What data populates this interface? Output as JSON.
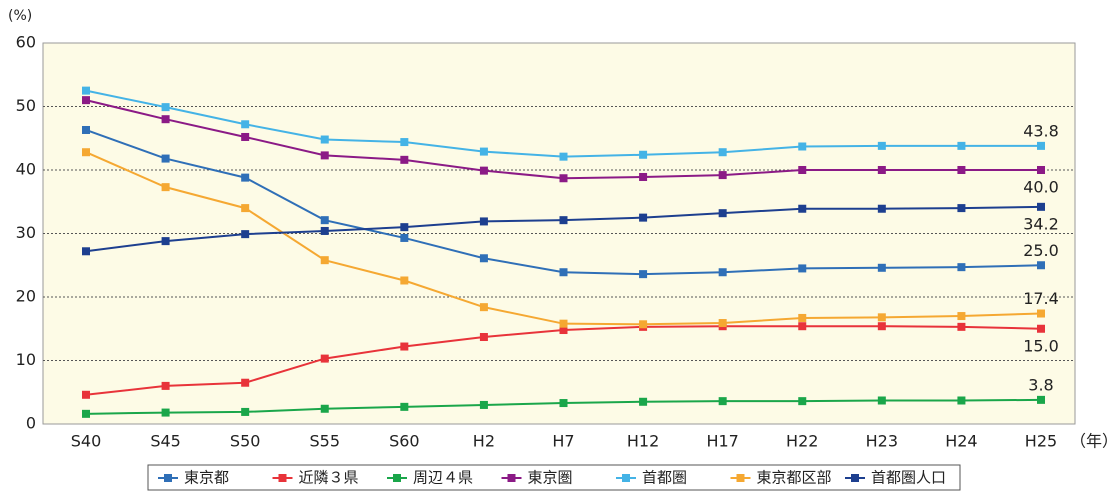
{
  "chart_data": {
    "type": "line",
    "y_label": "(%)",
    "x_label": "（年）",
    "categories": [
      "S40",
      "S45",
      "S50",
      "S55",
      "S60",
      "H2",
      "H7",
      "H12",
      "H17",
      "H22",
      "H23",
      "H24",
      "H25"
    ],
    "ylim": [
      0,
      60
    ],
    "yticks": [
      0,
      10,
      20,
      30,
      40,
      50,
      60
    ],
    "grid": true,
    "legend": "bottom",
    "series": [
      {
        "name": "東京都",
        "color": "#2f6fb7",
        "values": [
          46.3,
          41.8,
          38.8,
          32.1,
          29.3,
          26.1,
          23.9,
          23.6,
          23.9,
          24.5,
          24.6,
          24.7,
          25.0
        ],
        "value_labels": [
          null,
          null,
          null,
          null,
          null,
          null,
          null,
          null,
          null,
          null,
          null,
          null,
          "25.0"
        ]
      },
      {
        "name": "近隣３県",
        "color": "#e8333a",
        "values": [
          4.6,
          6.0,
          6.5,
          10.3,
          12.2,
          13.7,
          14.8,
          15.3,
          15.4,
          15.4,
          15.4,
          15.3,
          15.0
        ],
        "value_labels": [
          null,
          null,
          null,
          null,
          null,
          null,
          null,
          null,
          null,
          null,
          null,
          null,
          "15.0"
        ]
      },
      {
        "name": "周辺４県",
        "color": "#1aa64a",
        "values": [
          1.6,
          1.8,
          1.9,
          2.4,
          2.7,
          3.0,
          3.3,
          3.5,
          3.6,
          3.6,
          3.7,
          3.7,
          3.8
        ]
      },
      {
        "name": "東京圏",
        "color": "#8b1a86",
        "values": [
          51.0,
          48.0,
          45.2,
          42.3,
          41.6,
          39.9,
          38.7,
          38.9,
          39.2,
          40.0,
          40.0,
          40.0,
          40.0
        ],
        "value_labels": [
          null,
          null,
          null,
          null,
          null,
          null,
          null,
          null,
          null,
          null,
          null,
          null,
          "40.0"
        ]
      },
      {
        "name": "首都圏",
        "color": "#44b3e6",
        "values": [
          52.5,
          49.9,
          47.2,
          44.8,
          44.4,
          42.9,
          42.1,
          42.4,
          42.8,
          43.7,
          43.8,
          43.8,
          43.8
        ]
      },
      {
        "name": "東京都区部",
        "color": "#f5a832",
        "values": [
          42.8,
          37.3,
          34.0,
          25.8,
          22.6,
          18.4,
          15.8,
          15.7,
          15.9,
          16.7,
          16.8,
          17.0,
          17.4
        ]
      },
      {
        "name": "首都圏人口",
        "color": "#1d3f8f",
        "values": [
          27.2,
          28.8,
          29.9,
          30.4,
          31.0,
          31.9,
          32.1,
          32.5,
          33.2,
          33.9,
          33.9,
          34.0,
          34.2
        ]
      }
    ]
  }
}
